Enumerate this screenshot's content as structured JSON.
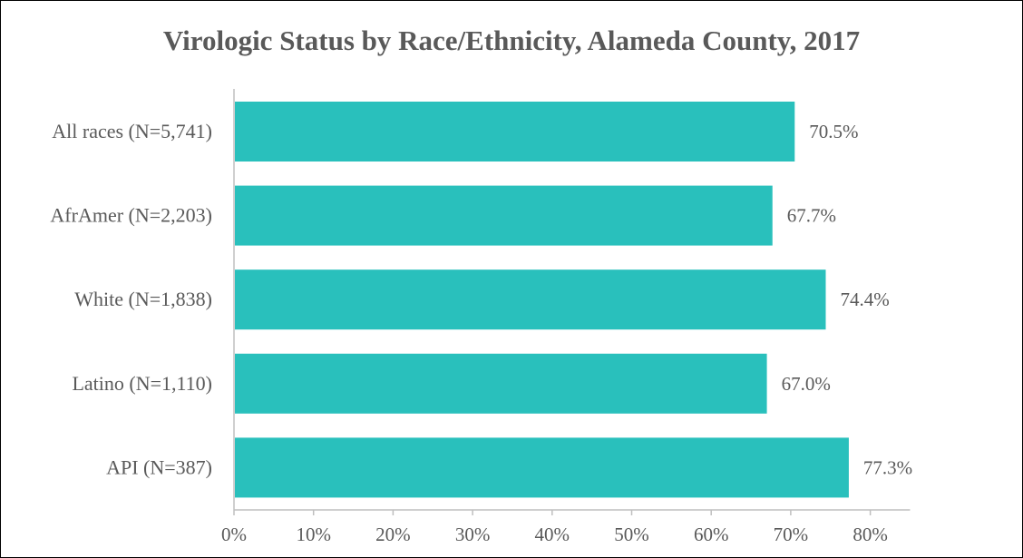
{
  "chart_data": {
    "type": "bar",
    "orientation": "horizontal",
    "title": "Virologic Status by Race/Ethnicity, Alameda County, 2017",
    "categories": [
      "All races (N=5,741)",
      "AfrAmer (N=2,203)",
      "White (N=1,838)",
      "Latino (N=1,110)",
      "API (N=387)"
    ],
    "values": [
      70.5,
      67.7,
      74.4,
      67.0,
      77.3
    ],
    "data_labels": [
      "70.5%",
      "67.7%",
      "74.4%",
      "67.0%",
      "77.3%"
    ],
    "xlim": [
      0,
      85
    ],
    "x_ticks": [
      0,
      10,
      20,
      30,
      40,
      50,
      60,
      70,
      80
    ],
    "x_tick_labels": [
      "0%",
      "10%",
      "20%",
      "30%",
      "40%",
      "50%",
      "60%",
      "70%",
      "80%"
    ],
    "xlabel": "",
    "ylabel": "",
    "grid": false,
    "legend": "none",
    "colors": {
      "bar": "#29C0BC",
      "text": "#595959",
      "axis": "#BFBFBF",
      "border": "#000000"
    }
  }
}
